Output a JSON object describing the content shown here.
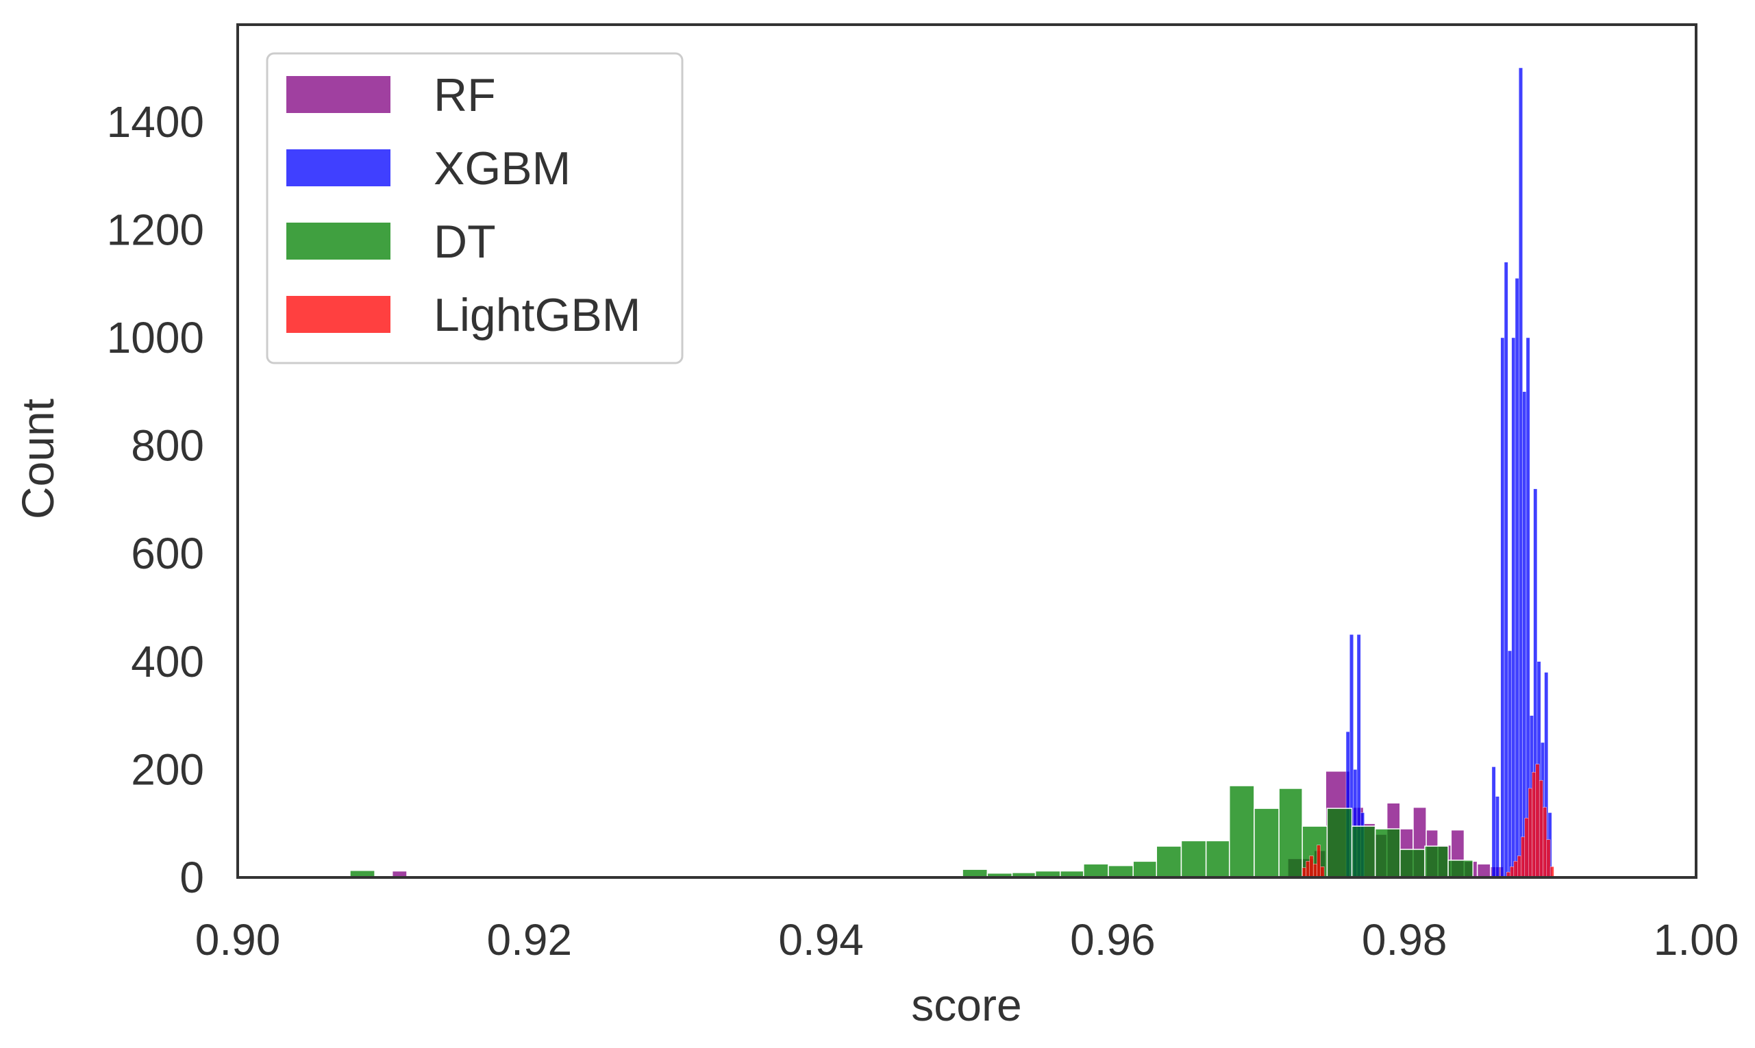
{
  "chart_data": {
    "type": "bar",
    "subtype": "overlaid-histogram",
    "title": "",
    "xlabel": "score",
    "ylabel": "Count",
    "xlim": [
      0.9,
      1.0
    ],
    "ylim": [
      0,
      1580
    ],
    "xticks": [
      "0.90",
      "0.92",
      "0.94",
      "0.96",
      "0.98",
      "1.00"
    ],
    "yticks": [
      "0",
      "200",
      "400",
      "600",
      "800",
      "1000",
      "1200",
      "1400"
    ],
    "grid": false,
    "legend_position": "top-left",
    "series": [
      {
        "name": "RF",
        "color": "#800080",
        "opacity": 0.75,
        "bins": [
          {
            "x0": 0.9106,
            "x1": 0.9116,
            "count": 12
          },
          {
            "x0": 0.972,
            "x1": 0.9738,
            "count": 35
          },
          {
            "x0": 0.9738,
            "x1": 0.9746,
            "count": 50
          },
          {
            "x0": 0.9746,
            "x1": 0.9763,
            "count": 197
          },
          {
            "x0": 0.9763,
            "x1": 0.9772,
            "count": 130
          },
          {
            "x0": 0.9772,
            "x1": 0.978,
            "count": 100
          },
          {
            "x0": 0.978,
            "x1": 0.9788,
            "count": 80
          },
          {
            "x0": 0.9788,
            "x1": 0.9797,
            "count": 138
          },
          {
            "x0": 0.9797,
            "x1": 0.9806,
            "count": 90
          },
          {
            "x0": 0.9806,
            "x1": 0.9815,
            "count": 130
          },
          {
            "x0": 0.9815,
            "x1": 0.9823,
            "count": 88
          },
          {
            "x0": 0.9823,
            "x1": 0.9832,
            "count": 60
          },
          {
            "x0": 0.9832,
            "x1": 0.9841,
            "count": 88
          },
          {
            "x0": 0.9841,
            "x1": 0.985,
            "count": 30
          },
          {
            "x0": 0.985,
            "x1": 0.9859,
            "count": 25
          },
          {
            "x0": 0.9859,
            "x1": 0.9868,
            "count": 20
          }
        ]
      },
      {
        "name": "XGBM",
        "color": "#0000ff",
        "opacity": 0.75,
        "bins": [
          {
            "x0": 0.976,
            "x1": 0.97625,
            "count": 270
          },
          {
            "x0": 0.97625,
            "x1": 0.9765,
            "count": 450
          },
          {
            "x0": 0.9765,
            "x1": 0.97675,
            "count": 200
          },
          {
            "x0": 0.97675,
            "x1": 0.977,
            "count": 450
          },
          {
            "x0": 0.977,
            "x1": 0.97725,
            "count": 120
          },
          {
            "x0": 0.986,
            "x1": 0.98625,
            "count": 205
          },
          {
            "x0": 0.98625,
            "x1": 0.9865,
            "count": 150
          },
          {
            "x0": 0.9866,
            "x1": 0.98685,
            "count": 1000
          },
          {
            "x0": 0.98685,
            "x1": 0.9871,
            "count": 1140
          },
          {
            "x0": 0.9871,
            "x1": 0.98735,
            "count": 420
          },
          {
            "x0": 0.98735,
            "x1": 0.9876,
            "count": 1000
          },
          {
            "x0": 0.9876,
            "x1": 0.98785,
            "count": 1110
          },
          {
            "x0": 0.98785,
            "x1": 0.9881,
            "count": 1500
          },
          {
            "x0": 0.9881,
            "x1": 0.98835,
            "count": 900
          },
          {
            "x0": 0.98835,
            "x1": 0.9886,
            "count": 1000
          },
          {
            "x0": 0.9886,
            "x1": 0.98885,
            "count": 300
          },
          {
            "x0": 0.98885,
            "x1": 0.9891,
            "count": 720
          },
          {
            "x0": 0.9891,
            "x1": 0.98935,
            "count": 400
          },
          {
            "x0": 0.98935,
            "x1": 0.9896,
            "count": 250
          },
          {
            "x0": 0.9896,
            "x1": 0.98985,
            "count": 380
          },
          {
            "x0": 0.98985,
            "x1": 0.9901,
            "count": 120
          }
        ]
      },
      {
        "name": "DT",
        "color": "#008000",
        "opacity": 0.75,
        "bins": [
          {
            "x0": 0.9077,
            "x1": 0.9094,
            "count": 13
          },
          {
            "x0": 0.9497,
            "x1": 0.9514,
            "count": 15
          },
          {
            "x0": 0.9514,
            "x1": 0.9531,
            "count": 8
          },
          {
            "x0": 0.9531,
            "x1": 0.9547,
            "count": 9
          },
          {
            "x0": 0.9547,
            "x1": 0.9564,
            "count": 12
          },
          {
            "x0": 0.9564,
            "x1": 0.958,
            "count": 12
          },
          {
            "x0": 0.958,
            "x1": 0.9597,
            "count": 25
          },
          {
            "x0": 0.9597,
            "x1": 0.9614,
            "count": 22
          },
          {
            "x0": 0.9614,
            "x1": 0.963,
            "count": 30
          },
          {
            "x0": 0.963,
            "x1": 0.9647,
            "count": 58
          },
          {
            "x0": 0.9647,
            "x1": 0.9664,
            "count": 68
          },
          {
            "x0": 0.9664,
            "x1": 0.968,
            "count": 68
          },
          {
            "x0": 0.968,
            "x1": 0.9697,
            "count": 170
          },
          {
            "x0": 0.9697,
            "x1": 0.9714,
            "count": 128
          },
          {
            "x0": 0.9714,
            "x1": 0.973,
            "count": 165
          },
          {
            "x0": 0.973,
            "x1": 0.9747,
            "count": 95
          },
          {
            "x0": 0.9747,
            "x1": 0.9764,
            "count": 128
          },
          {
            "x0": 0.9764,
            "x1": 0.978,
            "count": 95
          },
          {
            "x0": 0.978,
            "x1": 0.9797,
            "count": 90
          },
          {
            "x0": 0.9797,
            "x1": 0.9814,
            "count": 52
          },
          {
            "x0": 0.9814,
            "x1": 0.983,
            "count": 58
          },
          {
            "x0": 0.983,
            "x1": 0.9847,
            "count": 32
          }
        ]
      },
      {
        "name": "LightGBM",
        "color": "#ff0000",
        "opacity": 0.75,
        "bins": [
          {
            "x0": 0.973,
            "x1": 0.97325,
            "count": 18
          },
          {
            "x0": 0.97325,
            "x1": 0.9735,
            "count": 30
          },
          {
            "x0": 0.9735,
            "x1": 0.97375,
            "count": 40
          },
          {
            "x0": 0.97375,
            "x1": 0.974,
            "count": 25
          },
          {
            "x0": 0.974,
            "x1": 0.97425,
            "count": 60
          },
          {
            "x0": 0.97425,
            "x1": 0.9745,
            "count": 20
          },
          {
            "x0": 0.987,
            "x1": 0.98725,
            "count": 10
          },
          {
            "x0": 0.98725,
            "x1": 0.9875,
            "count": 20
          },
          {
            "x0": 0.9875,
            "x1": 0.98775,
            "count": 30
          },
          {
            "x0": 0.98775,
            "x1": 0.988,
            "count": 40
          },
          {
            "x0": 0.988,
            "x1": 0.98825,
            "count": 75
          },
          {
            "x0": 0.98825,
            "x1": 0.9885,
            "count": 110
          },
          {
            "x0": 0.9885,
            "x1": 0.98875,
            "count": 165
          },
          {
            "x0": 0.98875,
            "x1": 0.989,
            "count": 195
          },
          {
            "x0": 0.989,
            "x1": 0.98925,
            "count": 210
          },
          {
            "x0": 0.98925,
            "x1": 0.9895,
            "count": 180
          },
          {
            "x0": 0.9895,
            "x1": 0.98975,
            "count": 130
          },
          {
            "x0": 0.98975,
            "x1": 0.99,
            "count": 70
          },
          {
            "x0": 0.99,
            "x1": 0.99025,
            "count": 20
          }
        ]
      }
    ]
  }
}
